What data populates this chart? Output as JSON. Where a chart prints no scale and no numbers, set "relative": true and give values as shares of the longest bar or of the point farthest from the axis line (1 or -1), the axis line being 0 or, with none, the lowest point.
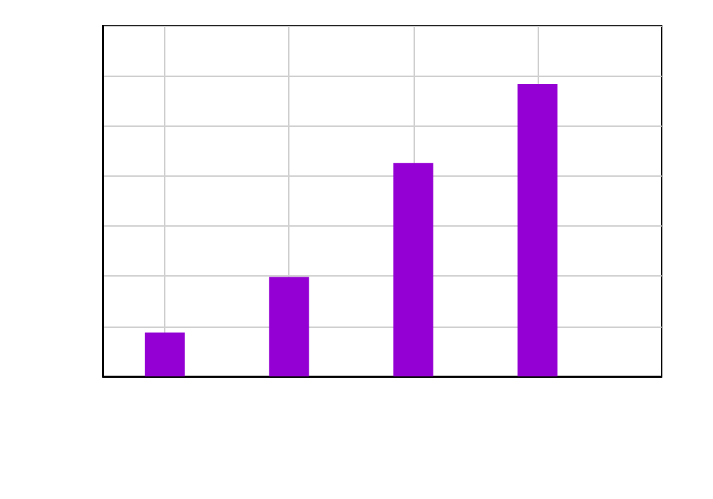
{
  "chart_data": {
    "type": "bar",
    "categories": [
      null,
      null,
      null,
      null
    ],
    "relative": true,
    "series": [
      {
        "color": "#9400d3",
        "values": [
          0.15,
          0.34,
          0.73,
          1
        ]
      }
    ],
    "grid": true
  }
}
